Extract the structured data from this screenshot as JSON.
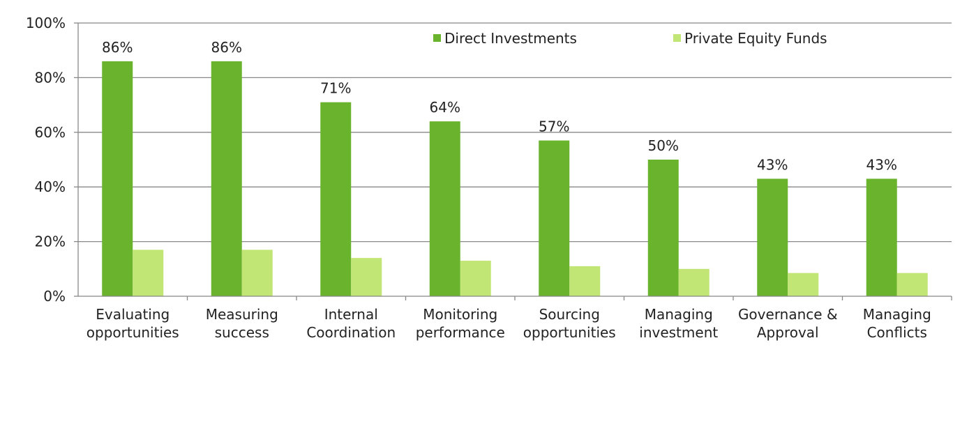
{
  "chart_data": {
    "type": "bar",
    "categories": [
      [
        "Evaluating",
        "opportunities"
      ],
      [
        "Measuring",
        "success"
      ],
      [
        "Internal",
        "Coordination"
      ],
      [
        "Monitoring",
        "performance"
      ],
      [
        "Sourcing",
        "opportunities"
      ],
      [
        "Managing",
        "investment"
      ],
      [
        "Governance &",
        "Approval"
      ],
      [
        "Managing",
        "Conflicts"
      ]
    ],
    "series": [
      {
        "name": "Direct Investments",
        "color": "#6ab42d",
        "values": [
          86,
          86,
          71,
          64,
          57,
          50,
          43,
          43
        ],
        "labels": [
          "86%",
          "86%",
          "71%",
          "64%",
          "57%",
          "50%",
          "43%",
          "43%"
        ]
      },
      {
        "name": "Private Equity Funds",
        "color": "#c2e675",
        "values": [
          17,
          17,
          14,
          13,
          11,
          10,
          8.5,
          8.5
        ]
      }
    ],
    "ylim": [
      0,
      100
    ],
    "yticks": [
      0,
      20,
      40,
      60,
      80,
      100
    ],
    "ytick_labels": [
      "0%",
      "20%",
      "40%",
      "60%",
      "80%",
      "100%"
    ],
    "grid": true,
    "legend_position": "top-right",
    "gridline_color": "#888888"
  }
}
